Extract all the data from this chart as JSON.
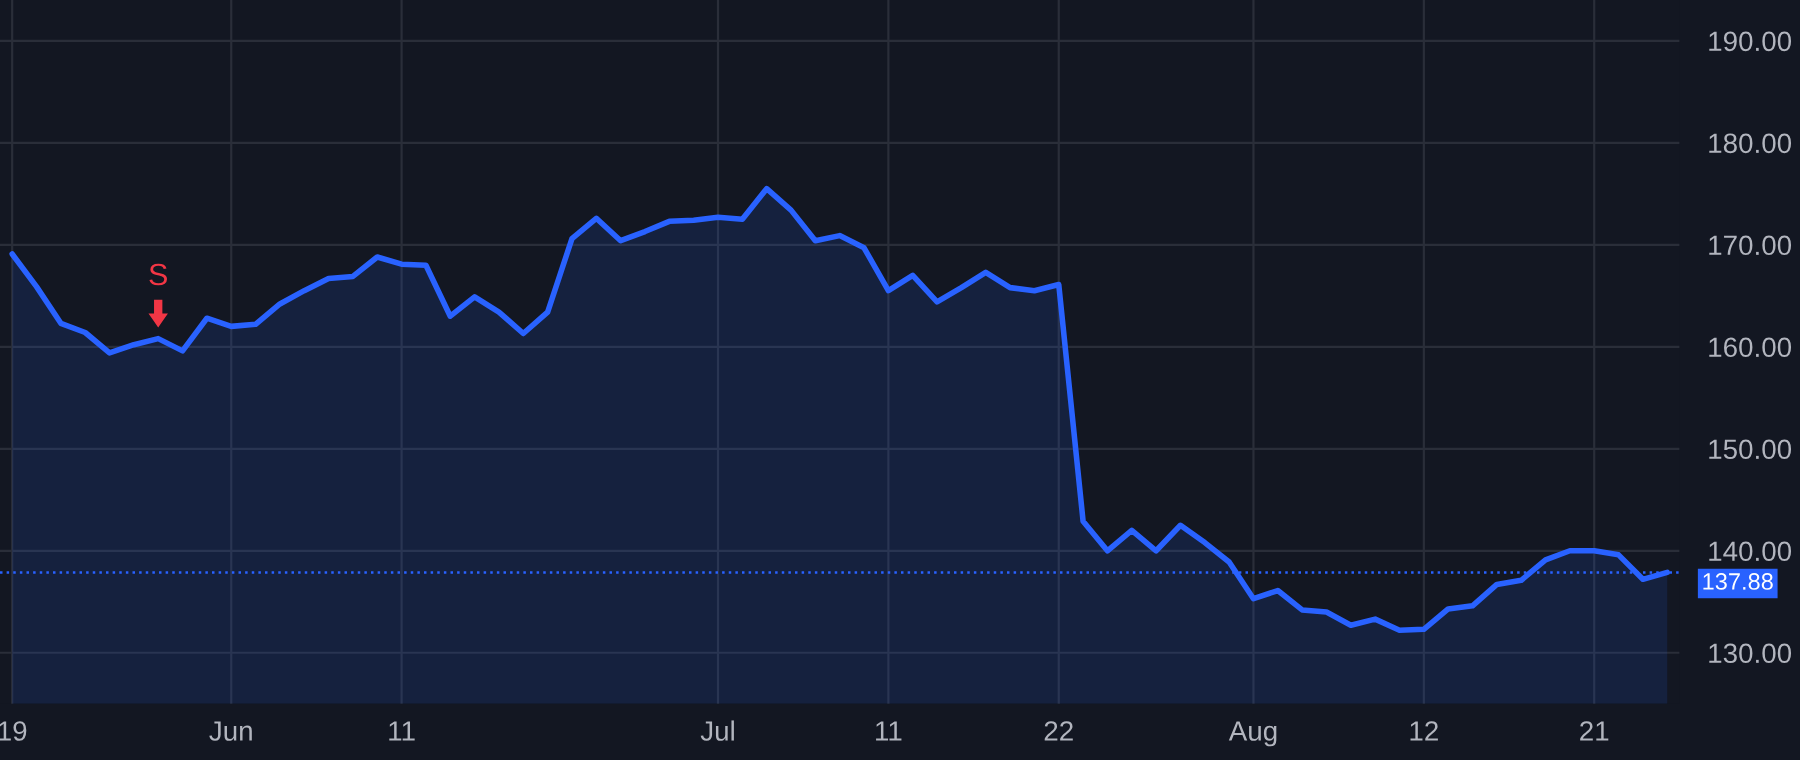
{
  "chart_data": {
    "type": "area",
    "categories": [
      "19",
      null,
      null,
      null,
      null,
      null,
      null,
      null,
      null,
      "Jun",
      null,
      null,
      null,
      null,
      null,
      null,
      "11",
      null,
      null,
      null,
      null,
      null,
      null,
      null,
      null,
      null,
      null,
      null,
      null,
      "Jul",
      null,
      null,
      null,
      null,
      null,
      null,
      "11",
      null,
      null,
      null,
      null,
      null,
      null,
      "22",
      null,
      null,
      null,
      null,
      null,
      null,
      null,
      "Aug",
      null,
      null,
      null,
      null,
      null,
      null,
      "12",
      null,
      null,
      null,
      null,
      null,
      null,
      "21",
      null,
      null,
      null
    ],
    "series": [
      {
        "color": "#2962ff",
        "values": [
          169.1,
          165.9,
          162.3,
          161.4,
          159.4,
          160.2,
          160.8,
          159.6,
          162.8,
          162.0,
          162.2,
          164.2,
          165.5,
          166.7,
          166.9,
          168.8,
          168.1,
          168.0,
          163.0,
          164.9,
          163.4,
          161.3,
          163.4,
          170.6,
          172.6,
          170.4,
          171.3,
          172.3,
          172.4,
          172.7,
          172.5,
          175.5,
          173.4,
          170.4,
          170.9,
          169.7,
          165.5,
          167.0,
          164.4,
          165.8,
          167.3,
          165.8,
          165.5,
          166.1,
          142.9,
          140.0,
          142.0,
          140.0,
          142.5,
          140.8,
          138.9,
          135.3,
          136.1,
          134.2,
          134.0,
          132.7,
          133.3,
          132.2,
          132.3,
          134.3,
          134.6,
          136.7,
          137.1,
          139.1,
          140.0,
          140.0,
          139.6,
          137.2,
          137.88
        ]
      }
    ],
    "ylim": [
      125,
      194
    ],
    "yticks": [
      {
        "value": 130,
        "label": "130.00"
      },
      {
        "value": 140,
        "label": "140.00"
      },
      {
        "value": 150,
        "label": "150.00"
      },
      {
        "value": 160,
        "label": "160.00"
      },
      {
        "value": 170,
        "label": "170.00"
      },
      {
        "value": 180,
        "label": "180.00"
      },
      {
        "value": 190,
        "label": "190.00"
      }
    ],
    "grid": true,
    "ref_lines": [
      {
        "axis": "y",
        "value": 137.88,
        "label": "137.88",
        "color": "#2962ff",
        "line_style": "dotted"
      }
    ],
    "annotations": [
      {
        "text": "S",
        "y": 160.8
      }
    ]
  }
}
